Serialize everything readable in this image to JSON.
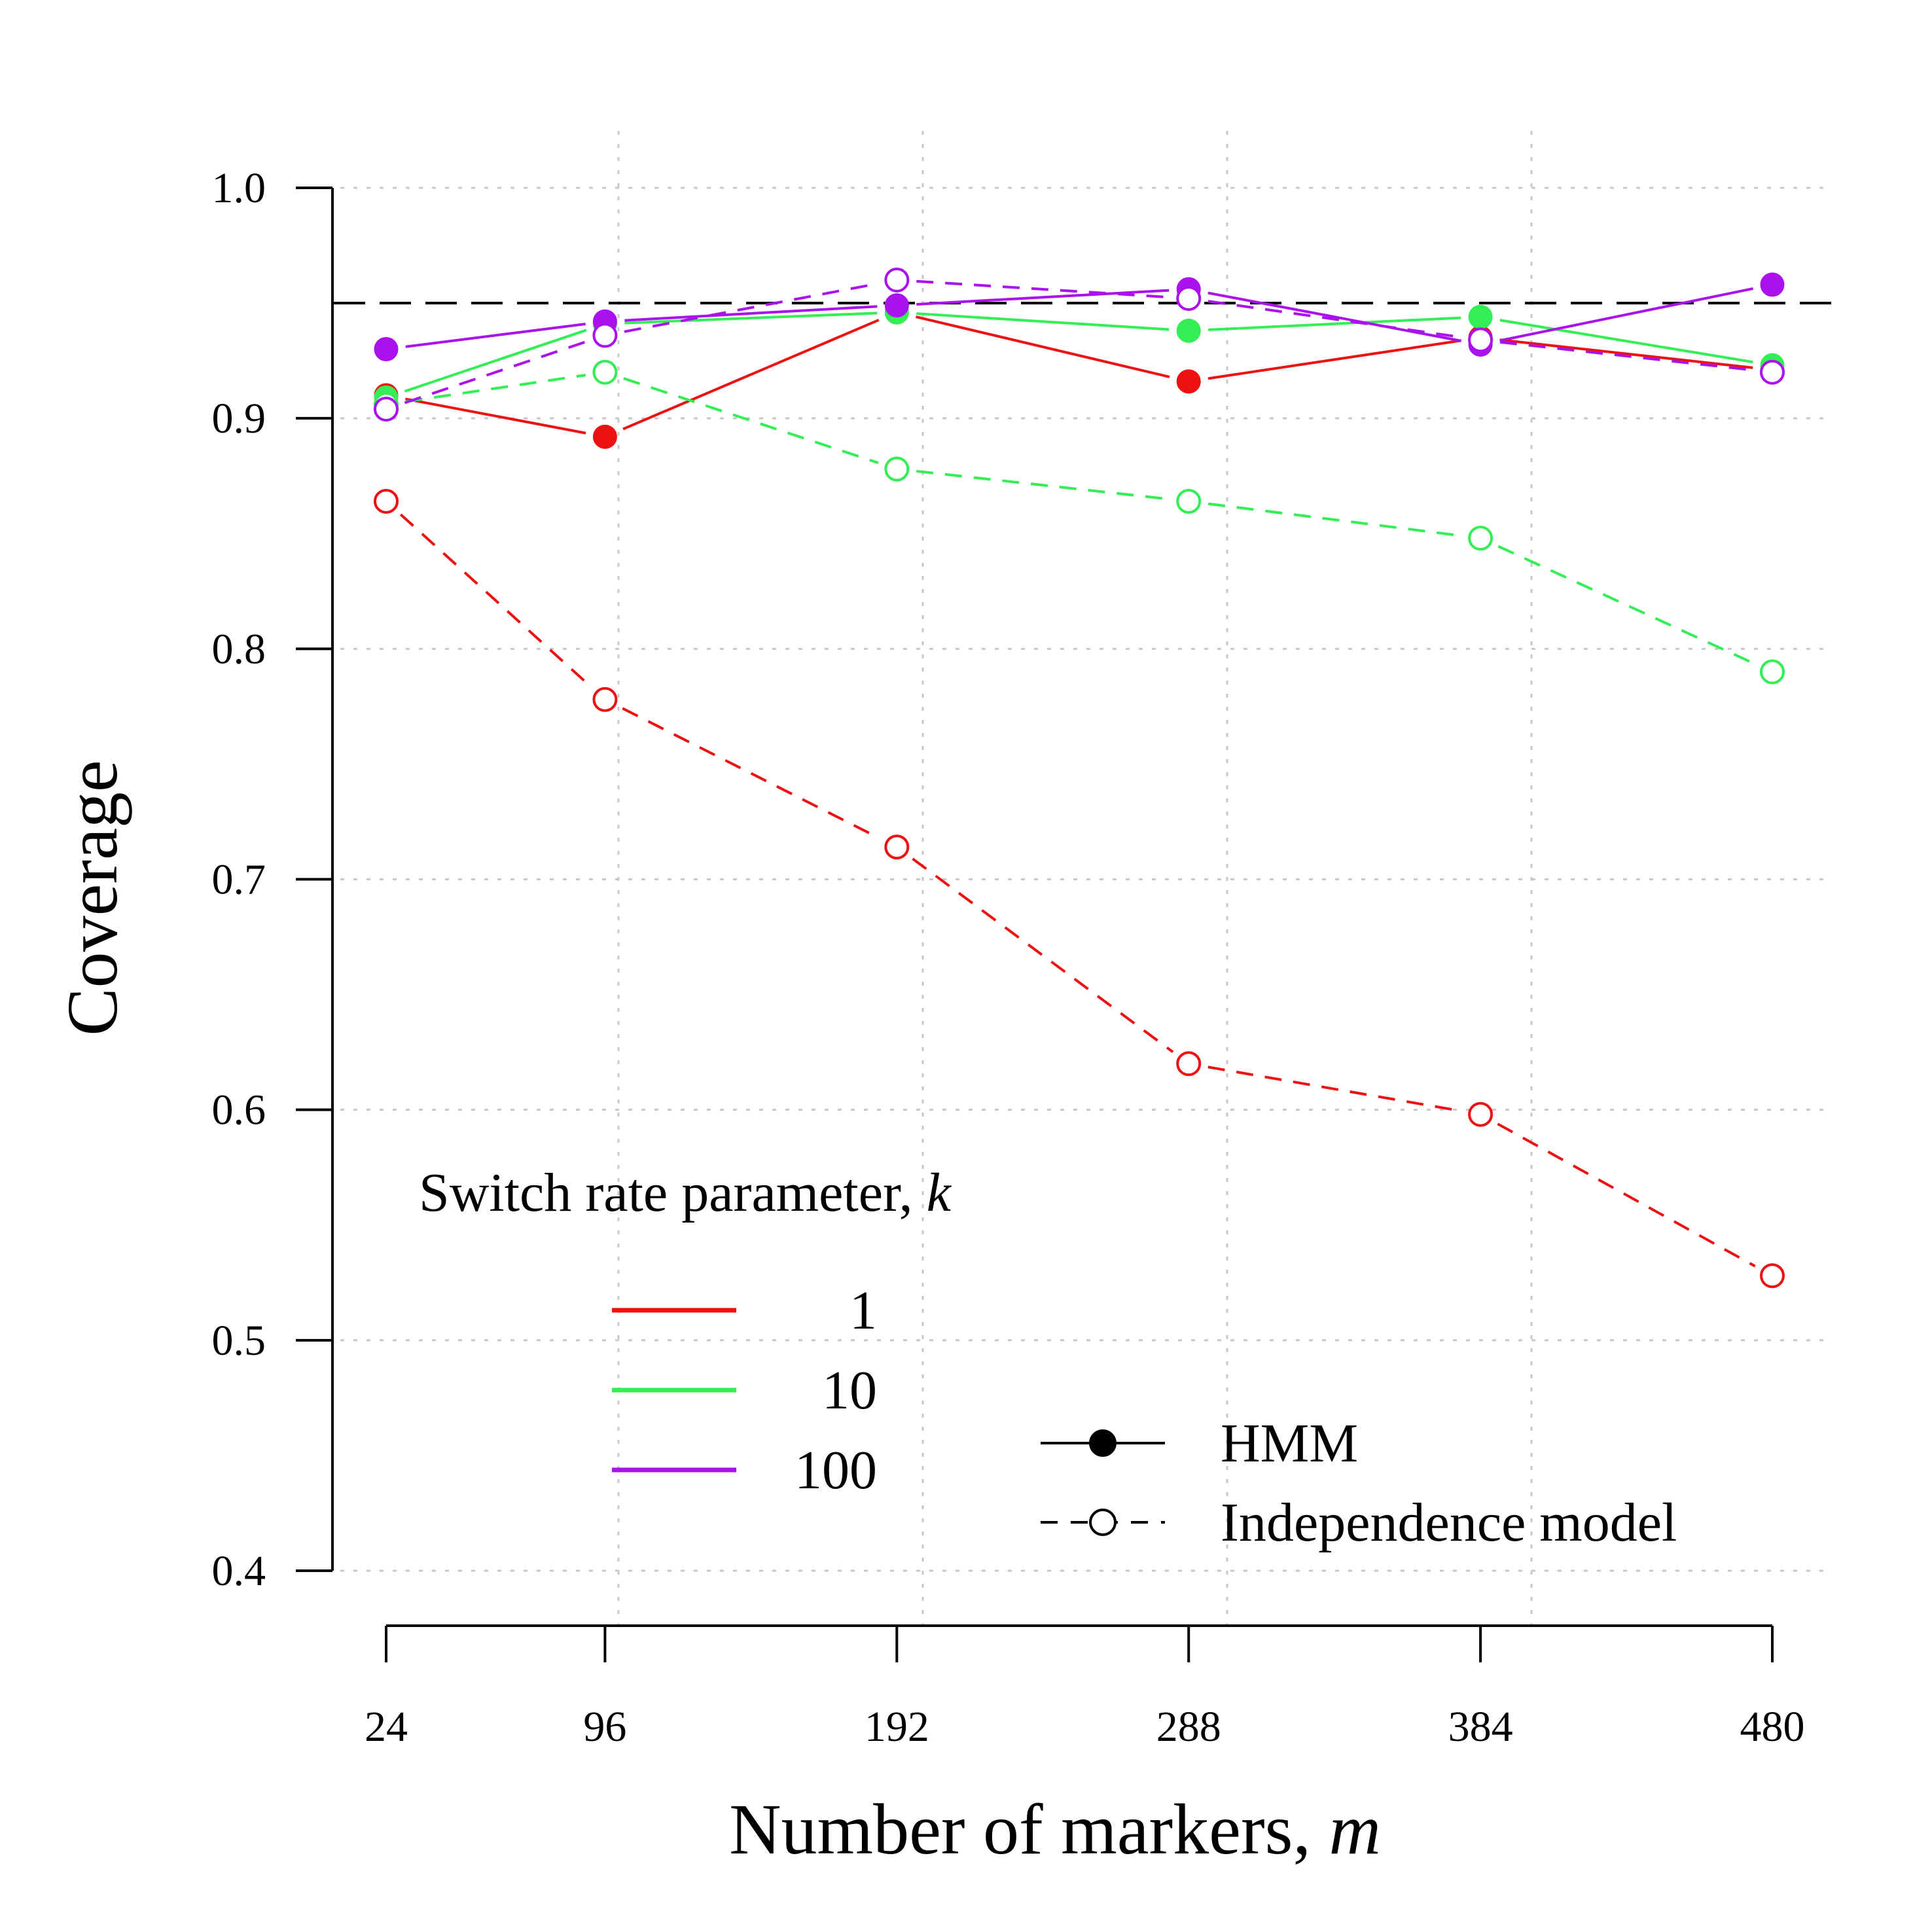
{
  "chart_data": {
    "type": "line",
    "title": "",
    "xlabel": "Number of markers, ",
    "xlabel_var": "m",
    "ylabel": "Coverage",
    "x": [
      24,
      96,
      192,
      288,
      384,
      480
    ],
    "x_tick_labels": [
      "24",
      "96",
      "192",
      "288",
      "384",
      "480"
    ],
    "y_ticks": [
      0.4,
      0.5,
      0.6,
      0.7,
      0.8,
      0.9,
      1.0
    ],
    "y_tick_labels": [
      "0.4",
      "0.5",
      "0.6",
      "0.7",
      "0.8",
      "0.9",
      "1.0"
    ],
    "ylim": [
      0.4,
      1.0
    ],
    "reference_line": 0.95,
    "grid": true,
    "legend": {
      "title": "Switch rate parameter, ",
      "title_var": "k",
      "placement": "bottom-left",
      "k_entries": [
        {
          "label": "1",
          "color": "#ee1111"
        },
        {
          "label": "10",
          "color": "#33ee55"
        },
        {
          "label": "100",
          "color": "#aa11ee"
        }
      ],
      "model_entries": [
        {
          "label": "HMM",
          "style": "solid",
          "marker": "filled"
        },
        {
          "label": "Independence model",
          "style": "dashed",
          "marker": "open"
        }
      ]
    },
    "series": [
      {
        "name": "1",
        "model": "HMM",
        "color": "#ee1111",
        "style": "solid",
        "marker": "filled",
        "values": [
          0.91,
          0.892,
          0.946,
          0.916,
          0.935,
          0.921
        ]
      },
      {
        "name": "10",
        "model": "HMM",
        "color": "#33ee55",
        "style": "solid",
        "marker": "filled",
        "values": [
          0.909,
          0.941,
          0.946,
          0.938,
          0.944,
          0.923
        ]
      },
      {
        "name": "100",
        "model": "HMM",
        "color": "#aa11ee",
        "style": "solid",
        "marker": "filled",
        "values": [
          0.93,
          0.942,
          0.949,
          0.956,
          0.932,
          0.958
        ]
      },
      {
        "name": "1",
        "model": "Independence model",
        "color": "#ee1111",
        "style": "dashed",
        "marker": "open",
        "values": [
          0.864,
          0.778,
          0.714,
          0.62,
          0.598,
          0.528
        ]
      },
      {
        "name": "10",
        "model": "Independence model",
        "color": "#33ee55",
        "style": "dashed",
        "marker": "open",
        "values": [
          0.906,
          0.92,
          0.878,
          0.864,
          0.848,
          0.79
        ]
      },
      {
        "name": "100",
        "model": "Independence model",
        "color": "#aa11ee",
        "style": "dashed",
        "marker": "open",
        "values": [
          0.904,
          0.936,
          0.96,
          0.952,
          0.934,
          0.92
        ]
      }
    ]
  }
}
